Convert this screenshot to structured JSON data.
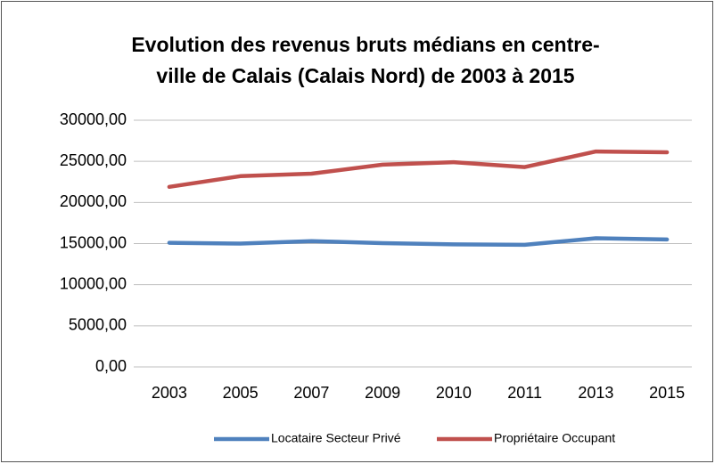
{
  "chart_data": {
    "type": "line",
    "title": [
      "Evolution des revenus bruts médians en centre-",
      "ville de Calais (Calais Nord) de 2003 à 2015"
    ],
    "categories": [
      "2003",
      "2005",
      "2007",
      "2009",
      "2010",
      "2011",
      "2013",
      "2015"
    ],
    "series": [
      {
        "name": "Locataire Secteur Privé",
        "color": "#4f81bd",
        "values": [
          15100,
          15000,
          15300,
          15050,
          14900,
          14850,
          15650,
          15500
        ]
      },
      {
        "name": "Propriétaire Occupant",
        "color": "#c0504d",
        "values": [
          21900,
          23200,
          23500,
          24600,
          24900,
          24300,
          26200,
          26100
        ]
      }
    ],
    "ylim": [
      0,
      30000
    ],
    "yticks": [
      {
        "value": 0,
        "label": "0,00"
      },
      {
        "value": 5000,
        "label": "5000,00"
      },
      {
        "value": 10000,
        "label": "10000,00"
      },
      {
        "value": 15000,
        "label": "15000,00"
      },
      {
        "value": 20000,
        "label": "20000,00"
      },
      {
        "value": 25000,
        "label": "25000,00"
      },
      {
        "value": 30000,
        "label": "30000,00"
      }
    ],
    "grid": true,
    "legend": "bottom"
  }
}
